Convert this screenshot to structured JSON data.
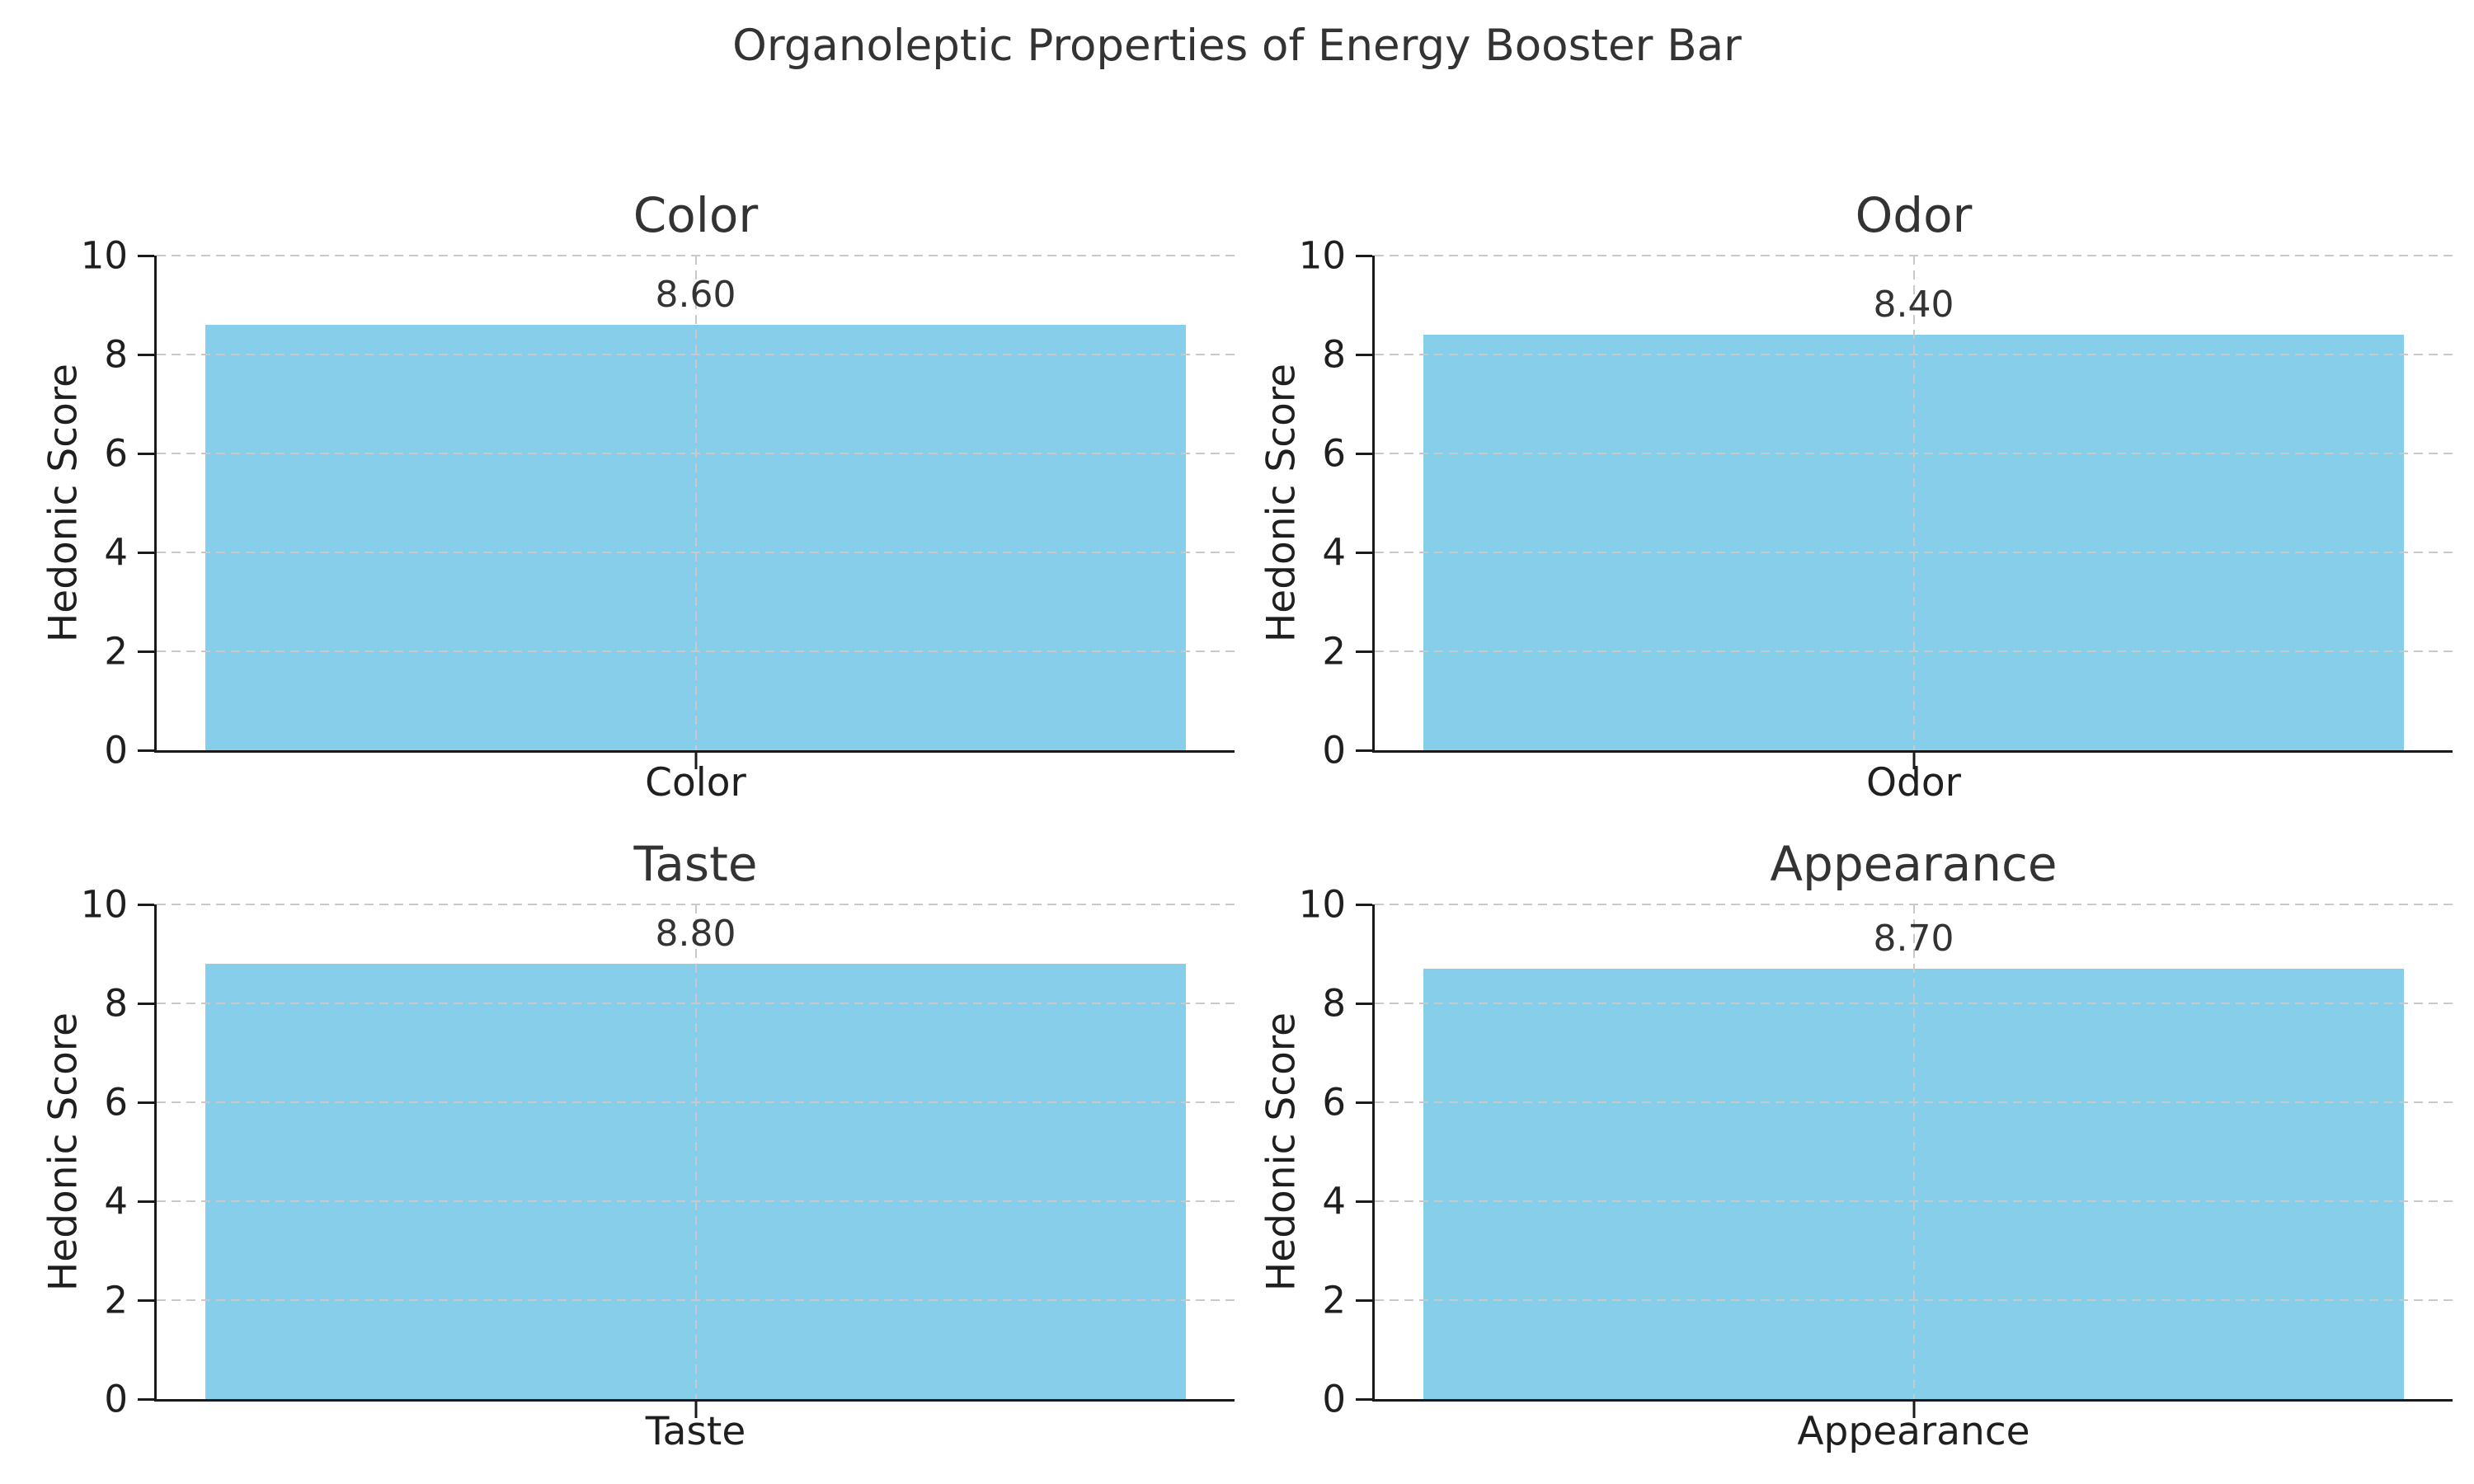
{
  "suptitle": "Organoleptic Properties of Energy Booster Bar",
  "colors": {
    "bar": "#87CEEB",
    "grid": "#c9c9c9",
    "spine": "#1a1a1a",
    "title_text": "#333333",
    "tick_text": "#1f1f1f"
  },
  "chart_data": [
    {
      "type": "bar",
      "title": "Color",
      "categories": [
        "Color"
      ],
      "values": [
        8.6
      ],
      "value_labels": [
        "8.60"
      ],
      "xlabel": "Color",
      "ylabel": "Hedonic Score",
      "ylim": [
        0,
        10
      ],
      "yticks": [
        0,
        2,
        4,
        6,
        8,
        10
      ],
      "grid": true,
      "legend": false
    },
    {
      "type": "bar",
      "title": "Odor",
      "categories": [
        "Odor"
      ],
      "values": [
        8.4
      ],
      "value_labels": [
        "8.40"
      ],
      "xlabel": "Odor",
      "ylabel": "Hedonic Score",
      "ylim": [
        0,
        10
      ],
      "yticks": [
        0,
        2,
        4,
        6,
        8,
        10
      ],
      "grid": true,
      "legend": false
    },
    {
      "type": "bar",
      "title": "Taste",
      "categories": [
        "Taste"
      ],
      "values": [
        8.8
      ],
      "value_labels": [
        "8.80"
      ],
      "xlabel": "Taste",
      "ylabel": "Hedonic Score",
      "ylim": [
        0,
        10
      ],
      "yticks": [
        0,
        2,
        4,
        6,
        8,
        10
      ],
      "grid": true,
      "legend": false
    },
    {
      "type": "bar",
      "title": "Appearance",
      "categories": [
        "Appearance"
      ],
      "values": [
        8.7
      ],
      "value_labels": [
        "8.70"
      ],
      "xlabel": "Appearance",
      "ylabel": "Hedonic Score",
      "ylim": [
        0,
        10
      ],
      "yticks": [
        0,
        2,
        4,
        6,
        8,
        10
      ],
      "grid": true,
      "legend": false
    }
  ]
}
